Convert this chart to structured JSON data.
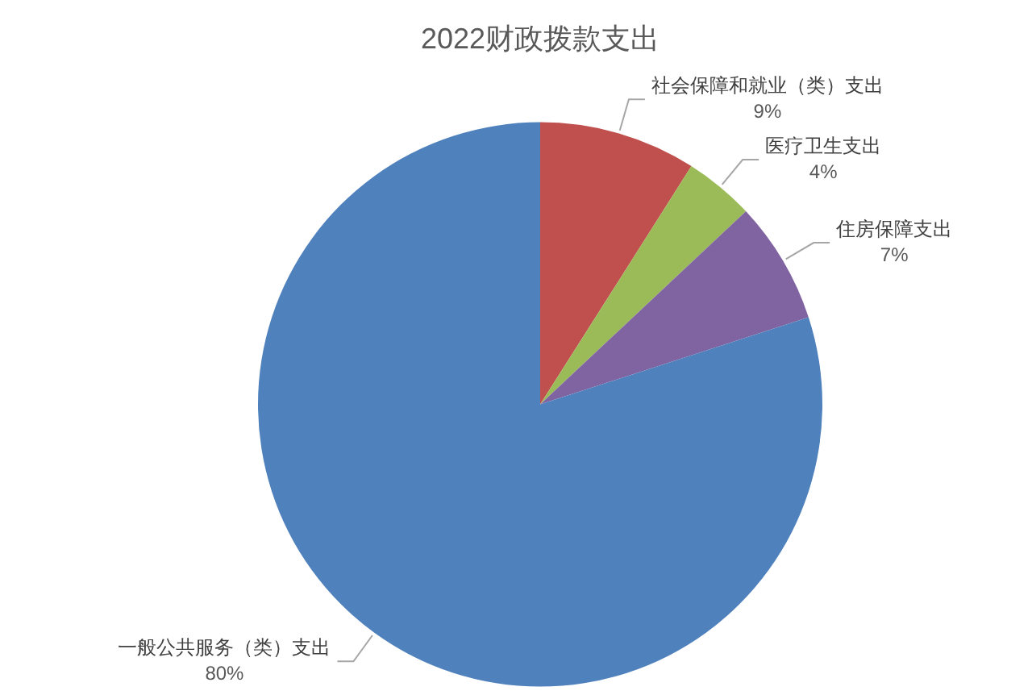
{
  "chart_data": {
    "type": "pie",
    "title": "2022财政拨款支出",
    "categories": [
      "社会保障和就业（类）支出",
      "医疗卫生支出",
      "住房保障支出",
      "一般公共服务（类）支出"
    ],
    "values": [
      9,
      4,
      7,
      80
    ],
    "colors": [
      "#c0504d",
      "#9bbb59",
      "#8064a2",
      "#4f81bd"
    ],
    "value_labels": [
      "9%",
      "4%",
      "7%",
      "80%"
    ],
    "legend": false
  }
}
